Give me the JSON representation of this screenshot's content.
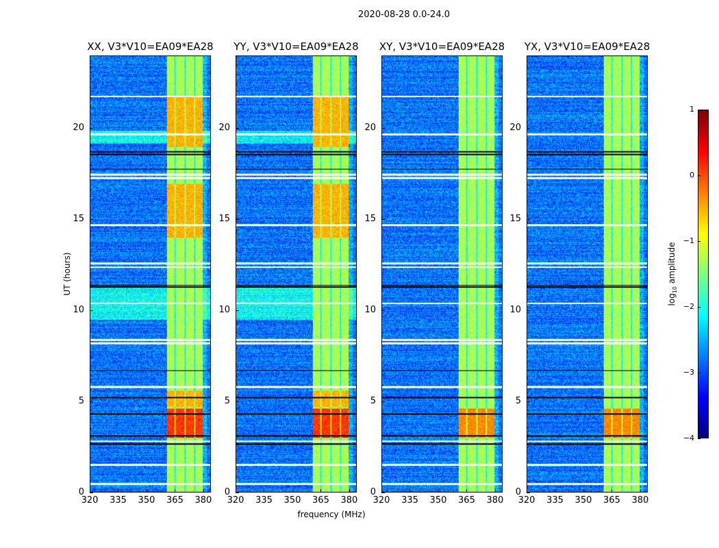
{
  "chart_data": {
    "type": "heatmap",
    "title": "2020-08-28 0.0-24.0",
    "xlabel": "frequency (MHz)",
    "ylabel": "UT (hours)",
    "xlim": [
      320,
      384
    ],
    "ylim": [
      0,
      24
    ],
    "xticks": [
      "320",
      "335",
      "350",
      "365",
      "380"
    ],
    "xtick_values": [
      320,
      335,
      350,
      365,
      380
    ],
    "yticks": [
      "0",
      "5",
      "10",
      "15",
      "20"
    ],
    "ytick_values": [
      0,
      5,
      10,
      15,
      20
    ],
    "panels": [
      {
        "title": "XX, V3*V10=EA09*EA28"
      },
      {
        "title": "YY, V3*V10=EA09*EA28"
      },
      {
        "title": "XY, V3*V10=EA09*EA28"
      },
      {
        "title": "YX, V3*V10=EA09*EA28"
      }
    ],
    "colorbar": {
      "label_prefix": "log",
      "label_sub": "10",
      "label_suffix": " amplitude",
      "range": [
        -4,
        1
      ],
      "ticks": [
        "1",
        "0",
        "−1",
        "−2",
        "−3",
        "−4"
      ],
      "tick_values": [
        1,
        0,
        -1,
        -2,
        -3,
        -4
      ],
      "colormap": "jet"
    },
    "features": {
      "background_level": -2.8,
      "rfi_band_mhz": [
        360.5,
        380
      ],
      "rfi_band_level": -1.3,
      "band_gaps_mhz": [
        365,
        370.5,
        375.6
      ],
      "strong_rfi_hours": [
        [
          3.0,
          4.6
        ],
        [
          4.7,
          5.6
        ],
        [
          14.0,
          17.0
        ],
        [
          19.0,
          21.8
        ]
      ],
      "flagged_hours": [
        21.8,
        19.7,
        17.5,
        17.3,
        14.7,
        12.6,
        12.4,
        10.4,
        8.4,
        8.2,
        5.8,
        2.8,
        1.5,
        0.45
      ],
      "black_line_hours": [
        18.75,
        18.6,
        17.8,
        6.7,
        5.2,
        4.3,
        3.1,
        2.65,
        11.4,
        11.3
      ]
    }
  }
}
